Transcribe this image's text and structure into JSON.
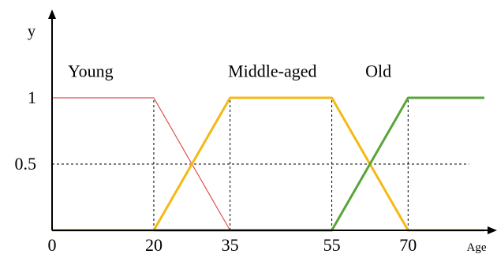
{
  "chart_data": {
    "type": "line",
    "title": "",
    "xlabel": "Age",
    "ylabel": "y",
    "xlim": [
      0,
      85
    ],
    "ylim": [
      0,
      1
    ],
    "x_ticks": [
      0,
      20,
      35,
      55,
      70
    ],
    "y_ticks": [
      0.5,
      1
    ],
    "y_tick_labels": [
      "0.5",
      "1"
    ],
    "x_tick_labels": [
      "0",
      "20",
      "35",
      "55",
      "70"
    ],
    "grid": false,
    "guide_lines": {
      "vertical_at_x": [
        20,
        35,
        55,
        70
      ],
      "horizontal_at_y": [
        0.5
      ]
    },
    "series": [
      {
        "name": "Young",
        "color": "#e0504f",
        "width": 1.2,
        "points": [
          [
            0,
            1
          ],
          [
            20,
            1
          ],
          [
            35,
            0
          ],
          [
            85,
            0
          ]
        ]
      },
      {
        "name": "Middle-aged",
        "color": "#f5b914",
        "width": 3,
        "points": [
          [
            0,
            0
          ],
          [
            20,
            0
          ],
          [
            35,
            1
          ],
          [
            55,
            1
          ],
          [
            70,
            0
          ],
          [
            85,
            0
          ]
        ]
      },
      {
        "name": "Old",
        "color": "#5aa43a",
        "width": 3,
        "points": [
          [
            20,
            0
          ],
          [
            55,
            0
          ],
          [
            70,
            1
          ],
          [
            85,
            1
          ]
        ]
      }
    ],
    "set_labels": [
      {
        "text": "Young",
        "x": 0,
        "y": 1.2
      },
      {
        "text": "Middle-aged",
        "x": 31.5,
        "y": 1.2
      },
      {
        "text": "Old",
        "x": 58.5,
        "y": 1.2
      }
    ]
  }
}
